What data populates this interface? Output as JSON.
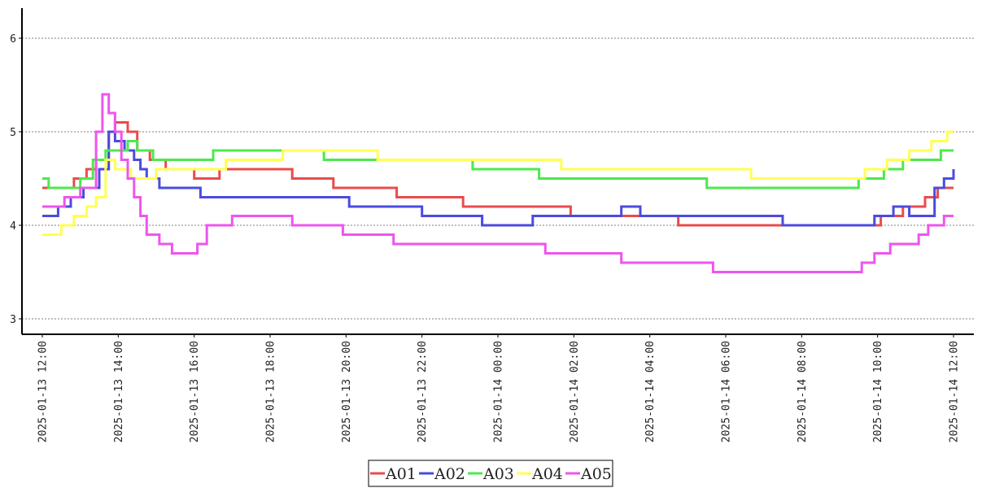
{
  "chart_data": {
    "type": "line",
    "title": "",
    "xlabel": "",
    "ylabel": "",
    "ylim": [
      3,
      6.3
    ],
    "xlim": [
      "2025-01-13 12:00",
      "2025-01-14 12:00"
    ],
    "grid": "horizontal dotted",
    "legend_position": "bottom-center",
    "step": true,
    "y_ticks": [
      "3",
      "4",
      "5",
      "6"
    ],
    "x_ticks": [
      "2025-01-13 12:00",
      "2025-01-13 14:00",
      "2025-01-13 16:00",
      "2025-01-13 18:00",
      "2025-01-13 20:00",
      "2025-01-13 22:00",
      "2025-01-14 00:00",
      "2025-01-14 02:00",
      "2025-01-14 04:00",
      "2025-01-14 06:00",
      "2025-01-14 08:00",
      "2025-01-14 10:00",
      "2025-01-14 12:00"
    ],
    "series": [
      {
        "name": "A01",
        "color": "#e84c4c",
        "points": [
          [
            "2025-01-13 12:00",
            4.4
          ],
          [
            "2025-01-13 12:50",
            4.5
          ],
          [
            "2025-01-13 13:10",
            4.6
          ],
          [
            "2025-01-13 13:25",
            4.7
          ],
          [
            "2025-01-13 13:45",
            5.0
          ],
          [
            "2025-01-13 13:55",
            5.1
          ],
          [
            "2025-01-13 14:15",
            5.0
          ],
          [
            "2025-01-13 14:30",
            4.8
          ],
          [
            "2025-01-13 14:50",
            4.7
          ],
          [
            "2025-01-13 15:15",
            4.6
          ],
          [
            "2025-01-13 16:00",
            4.5
          ],
          [
            "2025-01-13 16:40",
            4.6
          ],
          [
            "2025-01-13 18:35",
            4.5
          ],
          [
            "2025-01-13 19:40",
            4.4
          ],
          [
            "2025-01-13 21:20",
            4.3
          ],
          [
            "2025-01-13 23:05",
            4.2
          ],
          [
            "2025-01-14 01:55",
            4.1
          ],
          [
            "2025-01-14 04:45",
            4.0
          ],
          [
            "2025-01-14 10:05",
            4.1
          ],
          [
            "2025-01-14 10:40",
            4.2
          ],
          [
            "2025-01-14 11:15",
            4.3
          ],
          [
            "2025-01-14 11:35",
            4.4
          ],
          [
            "2025-01-14 12:00",
            4.4
          ]
        ]
      },
      {
        "name": "A02",
        "color": "#4b4bde",
        "points": [
          [
            "2025-01-13 12:00",
            4.1
          ],
          [
            "2025-01-13 12:25",
            4.2
          ],
          [
            "2025-01-13 12:45",
            4.3
          ],
          [
            "2025-01-13 13:05",
            4.4
          ],
          [
            "2025-01-13 13:30",
            4.6
          ],
          [
            "2025-01-13 13:45",
            5.0
          ],
          [
            "2025-01-13 13:55",
            4.9
          ],
          [
            "2025-01-13 14:10",
            4.8
          ],
          [
            "2025-01-13 14:25",
            4.7
          ],
          [
            "2025-01-13 14:35",
            4.6
          ],
          [
            "2025-01-13 14:45",
            4.5
          ],
          [
            "2025-01-13 15:05",
            4.4
          ],
          [
            "2025-01-13 16:10",
            4.3
          ],
          [
            "2025-01-13 20:05",
            4.2
          ],
          [
            "2025-01-13 22:00",
            4.1
          ],
          [
            "2025-01-13 23:35",
            4.0
          ],
          [
            "2025-01-14 00:55",
            4.1
          ],
          [
            "2025-01-14 03:15",
            4.2
          ],
          [
            "2025-01-14 03:45",
            4.1
          ],
          [
            "2025-01-14 07:30",
            4.0
          ],
          [
            "2025-01-14 09:55",
            4.1
          ],
          [
            "2025-01-14 10:25",
            4.2
          ],
          [
            "2025-01-14 10:50",
            4.1
          ],
          [
            "2025-01-14 11:30",
            4.4
          ],
          [
            "2025-01-14 11:45",
            4.5
          ],
          [
            "2025-01-14 12:00",
            4.6
          ]
        ]
      },
      {
        "name": "A03",
        "color": "#4de84d",
        "points": [
          [
            "2025-01-13 12:00",
            4.5
          ],
          [
            "2025-01-13 12:10",
            4.4
          ],
          [
            "2025-01-13 13:00",
            4.5
          ],
          [
            "2025-01-13 13:20",
            4.7
          ],
          [
            "2025-01-13 13:40",
            4.8
          ],
          [
            "2025-01-13 14:15",
            4.9
          ],
          [
            "2025-01-13 14:30",
            4.8
          ],
          [
            "2025-01-13 14:55",
            4.7
          ],
          [
            "2025-01-13 16:30",
            4.8
          ],
          [
            "2025-01-13 19:25",
            4.7
          ],
          [
            "2025-01-13 23:20",
            4.6
          ],
          [
            "2025-01-14 01:05",
            4.5
          ],
          [
            "2025-01-14 05:30",
            4.4
          ],
          [
            "2025-01-14 09:30",
            4.5
          ],
          [
            "2025-01-14 10:10",
            4.6
          ],
          [
            "2025-01-14 10:40",
            4.7
          ],
          [
            "2025-01-14 11:40",
            4.8
          ],
          [
            "2025-01-14 12:00",
            4.8
          ]
        ]
      },
      {
        "name": "A04",
        "color": "#ffff55",
        "points": [
          [
            "2025-01-13 12:00",
            3.9
          ],
          [
            "2025-01-13 12:30",
            4.0
          ],
          [
            "2025-01-13 12:50",
            4.1
          ],
          [
            "2025-01-13 13:10",
            4.2
          ],
          [
            "2025-01-13 13:25",
            4.3
          ],
          [
            "2025-01-13 13:40",
            4.7
          ],
          [
            "2025-01-13 13:55",
            4.6
          ],
          [
            "2025-01-13 14:20",
            4.5
          ],
          [
            "2025-01-13 15:00",
            4.6
          ],
          [
            "2025-01-13 16:50",
            4.7
          ],
          [
            "2025-01-13 18:20",
            4.8
          ],
          [
            "2025-01-13 20:50",
            4.7
          ],
          [
            "2025-01-13 23:30",
            4.7
          ],
          [
            "2025-01-14 01:40",
            4.6
          ],
          [
            "2025-01-14 06:40",
            4.5
          ],
          [
            "2025-01-14 09:40",
            4.6
          ],
          [
            "2025-01-14 10:15",
            4.7
          ],
          [
            "2025-01-14 10:50",
            4.8
          ],
          [
            "2025-01-14 11:25",
            4.9
          ],
          [
            "2025-01-14 11:50",
            5.0
          ],
          [
            "2025-01-14 12:00",
            5.0
          ]
        ]
      },
      {
        "name": "A05",
        "color": "#ee55ee",
        "points": [
          [
            "2025-01-13 12:00",
            4.2
          ],
          [
            "2025-01-13 12:35",
            4.3
          ],
          [
            "2025-01-13 13:00",
            4.4
          ],
          [
            "2025-01-13 13:25",
            5.0
          ],
          [
            "2025-01-13 13:35",
            5.4
          ],
          [
            "2025-01-13 13:45",
            5.2
          ],
          [
            "2025-01-13 13:55",
            5.0
          ],
          [
            "2025-01-13 14:05",
            4.7
          ],
          [
            "2025-01-13 14:15",
            4.5
          ],
          [
            "2025-01-13 14:25",
            4.3
          ],
          [
            "2025-01-13 14:35",
            4.1
          ],
          [
            "2025-01-13 14:45",
            3.9
          ],
          [
            "2025-01-13 15:05",
            3.8
          ],
          [
            "2025-01-13 15:25",
            3.7
          ],
          [
            "2025-01-13 16:05",
            3.8
          ],
          [
            "2025-01-13 16:20",
            4.0
          ],
          [
            "2025-01-13 17:00",
            4.1
          ],
          [
            "2025-01-13 18:35",
            4.0
          ],
          [
            "2025-01-13 19:55",
            3.9
          ],
          [
            "2025-01-13 21:15",
            3.8
          ],
          [
            "2025-01-14 01:15",
            3.7
          ],
          [
            "2025-01-14 03:15",
            3.6
          ],
          [
            "2025-01-14 05:40",
            3.5
          ],
          [
            "2025-01-14 09:35",
            3.6
          ],
          [
            "2025-01-14 09:55",
            3.7
          ],
          [
            "2025-01-14 10:20",
            3.8
          ],
          [
            "2025-01-14 11:05",
            3.9
          ],
          [
            "2025-01-14 11:20",
            4.0
          ],
          [
            "2025-01-14 11:45",
            4.1
          ],
          [
            "2025-01-14 12:00",
            4.1
          ]
        ]
      }
    ]
  }
}
